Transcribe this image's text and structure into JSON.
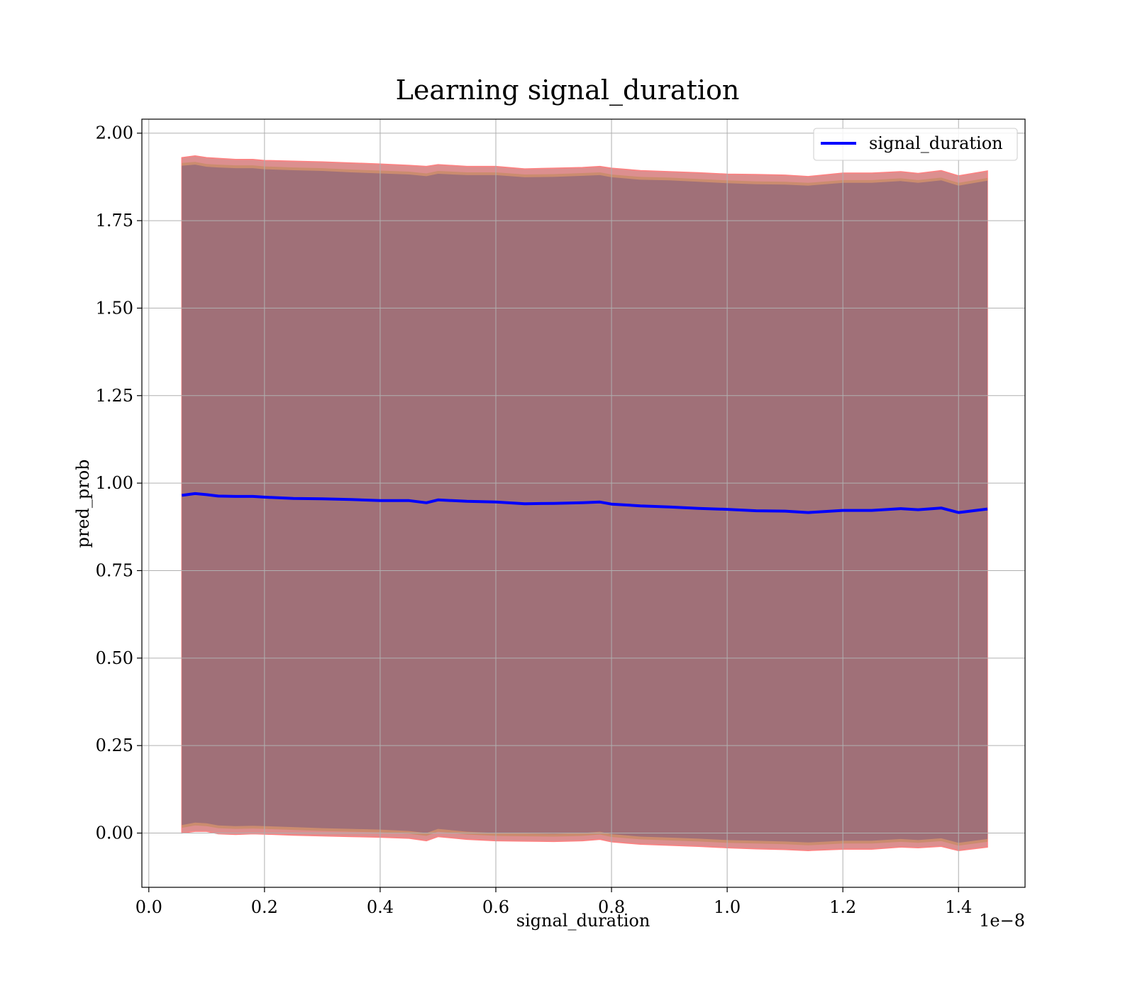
{
  "chart_data": {
    "type": "line",
    "title": "Learning signal_duration",
    "xlabel": "signal_duration",
    "ylabel": "pred_prob",
    "x_scale_label": "1e−8",
    "xlim": [
      -0.012,
      1.515
    ],
    "ylim": [
      -0.155,
      2.04
    ],
    "x_ticks": [
      0.0,
      0.2,
      0.4,
      0.6,
      0.8,
      1.0,
      1.2,
      1.4
    ],
    "x_tick_labels": [
      "0.0",
      "0.2",
      "0.4",
      "0.6",
      "0.8",
      "1.0",
      "1.2",
      "1.4"
    ],
    "y_ticks": [
      0.0,
      0.25,
      0.5,
      0.75,
      1.0,
      1.25,
      1.5,
      1.75,
      2.0
    ],
    "y_tick_labels": [
      "0.00",
      "0.25",
      "0.50",
      "0.75",
      "1.00",
      "1.25",
      "1.50",
      "1.75",
      "2.00"
    ],
    "grid": true,
    "legend_position": "top-right",
    "colors": {
      "line": "#0000ff",
      "band_outer": "#d06a6a",
      "band_mid": "#bf8a5a",
      "band_inner": "#a07078",
      "grid": "#b0b0b0"
    },
    "series": [
      {
        "name": "signal_duration",
        "x": [
          0.057,
          0.08,
          0.1,
          0.12,
          0.15,
          0.18,
          0.2,
          0.25,
          0.3,
          0.35,
          0.4,
          0.45,
          0.48,
          0.5,
          0.55,
          0.6,
          0.65,
          0.7,
          0.75,
          0.78,
          0.8,
          0.85,
          0.9,
          0.95,
          1.0,
          1.05,
          1.1,
          1.14,
          1.2,
          1.25,
          1.3,
          1.33,
          1.37,
          1.4,
          1.45
        ],
        "y": [
          0.965,
          0.97,
          0.967,
          0.963,
          0.962,
          0.962,
          0.96,
          0.956,
          0.955,
          0.953,
          0.95,
          0.95,
          0.944,
          0.952,
          0.948,
          0.946,
          0.941,
          0.942,
          0.944,
          0.946,
          0.94,
          0.935,
          0.932,
          0.928,
          0.925,
          0.921,
          0.92,
          0.916,
          0.922,
          0.922,
          0.927,
          0.924,
          0.929,
          0.916,
          0.926
        ]
      }
    ],
    "band": {
      "outer_upper": [
        1.93,
        1.935,
        1.93,
        1.928,
        1.925,
        1.925,
        1.922,
        1.92,
        1.918,
        1.915,
        1.912,
        1.908,
        1.905,
        1.91,
        1.905,
        1.905,
        1.898,
        1.9,
        1.902,
        1.905,
        1.9,
        1.893,
        1.89,
        1.887,
        1.883,
        1.882,
        1.88,
        1.876,
        1.886,
        1.886,
        1.89,
        1.885,
        1.893,
        1.878,
        1.892
      ],
      "outer_lower": [
        0.0,
        0.005,
        0.005,
        -0.002,
        -0.004,
        -0.002,
        -0.003,
        -0.006,
        -0.008,
        -0.01,
        -0.012,
        -0.015,
        -0.022,
        -0.01,
        -0.018,
        -0.022,
        -0.023,
        -0.024,
        -0.022,
        -0.018,
        -0.025,
        -0.032,
        -0.035,
        -0.038,
        -0.042,
        -0.045,
        -0.047,
        -0.05,
        -0.046,
        -0.046,
        -0.04,
        -0.042,
        -0.038,
        -0.05,
        -0.04
      ],
      "inner_upper": [
        1.915,
        1.918,
        1.912,
        1.91,
        1.908,
        1.908,
        1.905,
        1.902,
        1.9,
        1.896,
        1.893,
        1.89,
        1.885,
        1.892,
        1.888,
        1.888,
        1.882,
        1.883,
        1.886,
        1.888,
        1.882,
        1.875,
        1.873,
        1.869,
        1.865,
        1.862,
        1.861,
        1.858,
        1.866,
        1.866,
        1.871,
        1.866,
        1.873,
        1.858,
        1.872
      ],
      "inner_lower": [
        0.015,
        0.022,
        0.02,
        0.014,
        0.012,
        0.013,
        0.012,
        0.009,
        0.006,
        0.004,
        0.002,
        -0.002,
        -0.008,
        0.004,
        -0.004,
        -0.008,
        -0.009,
        -0.01,
        -0.008,
        -0.004,
        -0.011,
        -0.018,
        -0.021,
        -0.024,
        -0.028,
        -0.03,
        -0.032,
        -0.035,
        -0.03,
        -0.03,
        -0.025,
        -0.028,
        -0.023,
        -0.036,
        -0.025
      ]
    }
  }
}
